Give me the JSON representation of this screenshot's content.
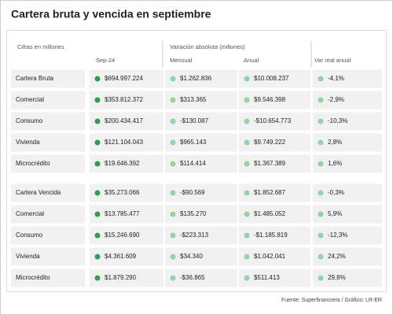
{
  "header": {
    "title": "Cartera bruta y vencida en septiembre"
  },
  "table": {
    "header_top": [
      "Cifras en millones",
      "Variación absoluta (millones)"
    ],
    "columns": [
      "Sep-24",
      "Mensual",
      "Anual",
      "Var real anual"
    ],
    "groups": [
      {
        "rows": [
          [
            "Cartera Bruta",
            "$694.997.224",
            "$1.262.836",
            "$10.008.237",
            "-4,1%"
          ],
          [
            "Comercial",
            "$353.812.372",
            "$313.365",
            "$9.546.398",
            "-2,9%"
          ],
          [
            "Consumo",
            "$200.434.417",
            "-$130.087",
            "-$10.654.773",
            "-10,3%"
          ],
          [
            "Vivienda",
            "$121.104.043",
            "$965.143",
            "$9.749.222",
            "2,8%"
          ],
          [
            "Microcrédito",
            "$19.646.392",
            "$114.414",
            "$1.367.389",
            "1,6%"
          ]
        ]
      },
      {
        "rows": [
          [
            "Cartera Vencida",
            "$35.273.066",
            "-$90.569",
            "$1.852.687",
            "-0,3%"
          ],
          [
            "Comercial",
            "$13.785.477",
            "$135.270",
            "$1.485.052",
            "5,9%"
          ],
          [
            "Consumo",
            "$15.246.690",
            "-$223.313",
            "-$1.185.819",
            "-12,3%"
          ],
          [
            "Vivienda",
            "$4.361.609",
            "$34.340",
            "$1.042.041",
            "24,2%"
          ],
          [
            "Microcrédito",
            "$1.879.290",
            "-$36.865",
            "$511.413",
            "29,8%"
          ]
        ]
      }
    ]
  },
  "footer": {
    "source": "Fuente: Superfinanciera / Gráfico: LR-ER"
  }
}
